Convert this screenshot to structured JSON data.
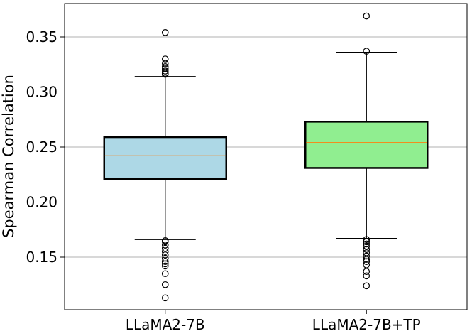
{
  "chart_data": {
    "type": "box",
    "ylabel": "Spearman Correlation",
    "ylim": [
      0.105,
      0.375
    ],
    "yticks": [
      0.15,
      0.2,
      0.25,
      0.3,
      0.35
    ],
    "ytick_labels": [
      "0.15",
      "0.20",
      "0.25",
      "0.30",
      "0.35"
    ],
    "grid": "horizontal",
    "categories": [
      "LLaMA2-7B",
      "LLaMA2-7B+TP"
    ],
    "boxes": [
      {
        "name": "LLaMA2-7B",
        "color": "#add8e6",
        "median": 0.242,
        "q1": 0.221,
        "q3": 0.259,
        "whisker_low": 0.166,
        "whisker_high": 0.314,
        "outliers": [
          0.354,
          0.33,
          0.326,
          0.323,
          0.321,
          0.319,
          0.317,
          0.316,
          0.165,
          0.164,
          0.161,
          0.158,
          0.155,
          0.152,
          0.149,
          0.146,
          0.144,
          0.142,
          0.135,
          0.125,
          0.113
        ]
      },
      {
        "name": "LLaMA2-7B+TP",
        "color": "#90ee90",
        "median": 0.254,
        "q1": 0.231,
        "q3": 0.273,
        "whisker_low": 0.167,
        "whisker_high": 0.336,
        "outliers": [
          0.369,
          0.337,
          0.166,
          0.164,
          0.162,
          0.16,
          0.157,
          0.154,
          0.151,
          0.148,
          0.146,
          0.143,
          0.137,
          0.133,
          0.124
        ]
      }
    ],
    "median_color": "#ff7f0e"
  }
}
